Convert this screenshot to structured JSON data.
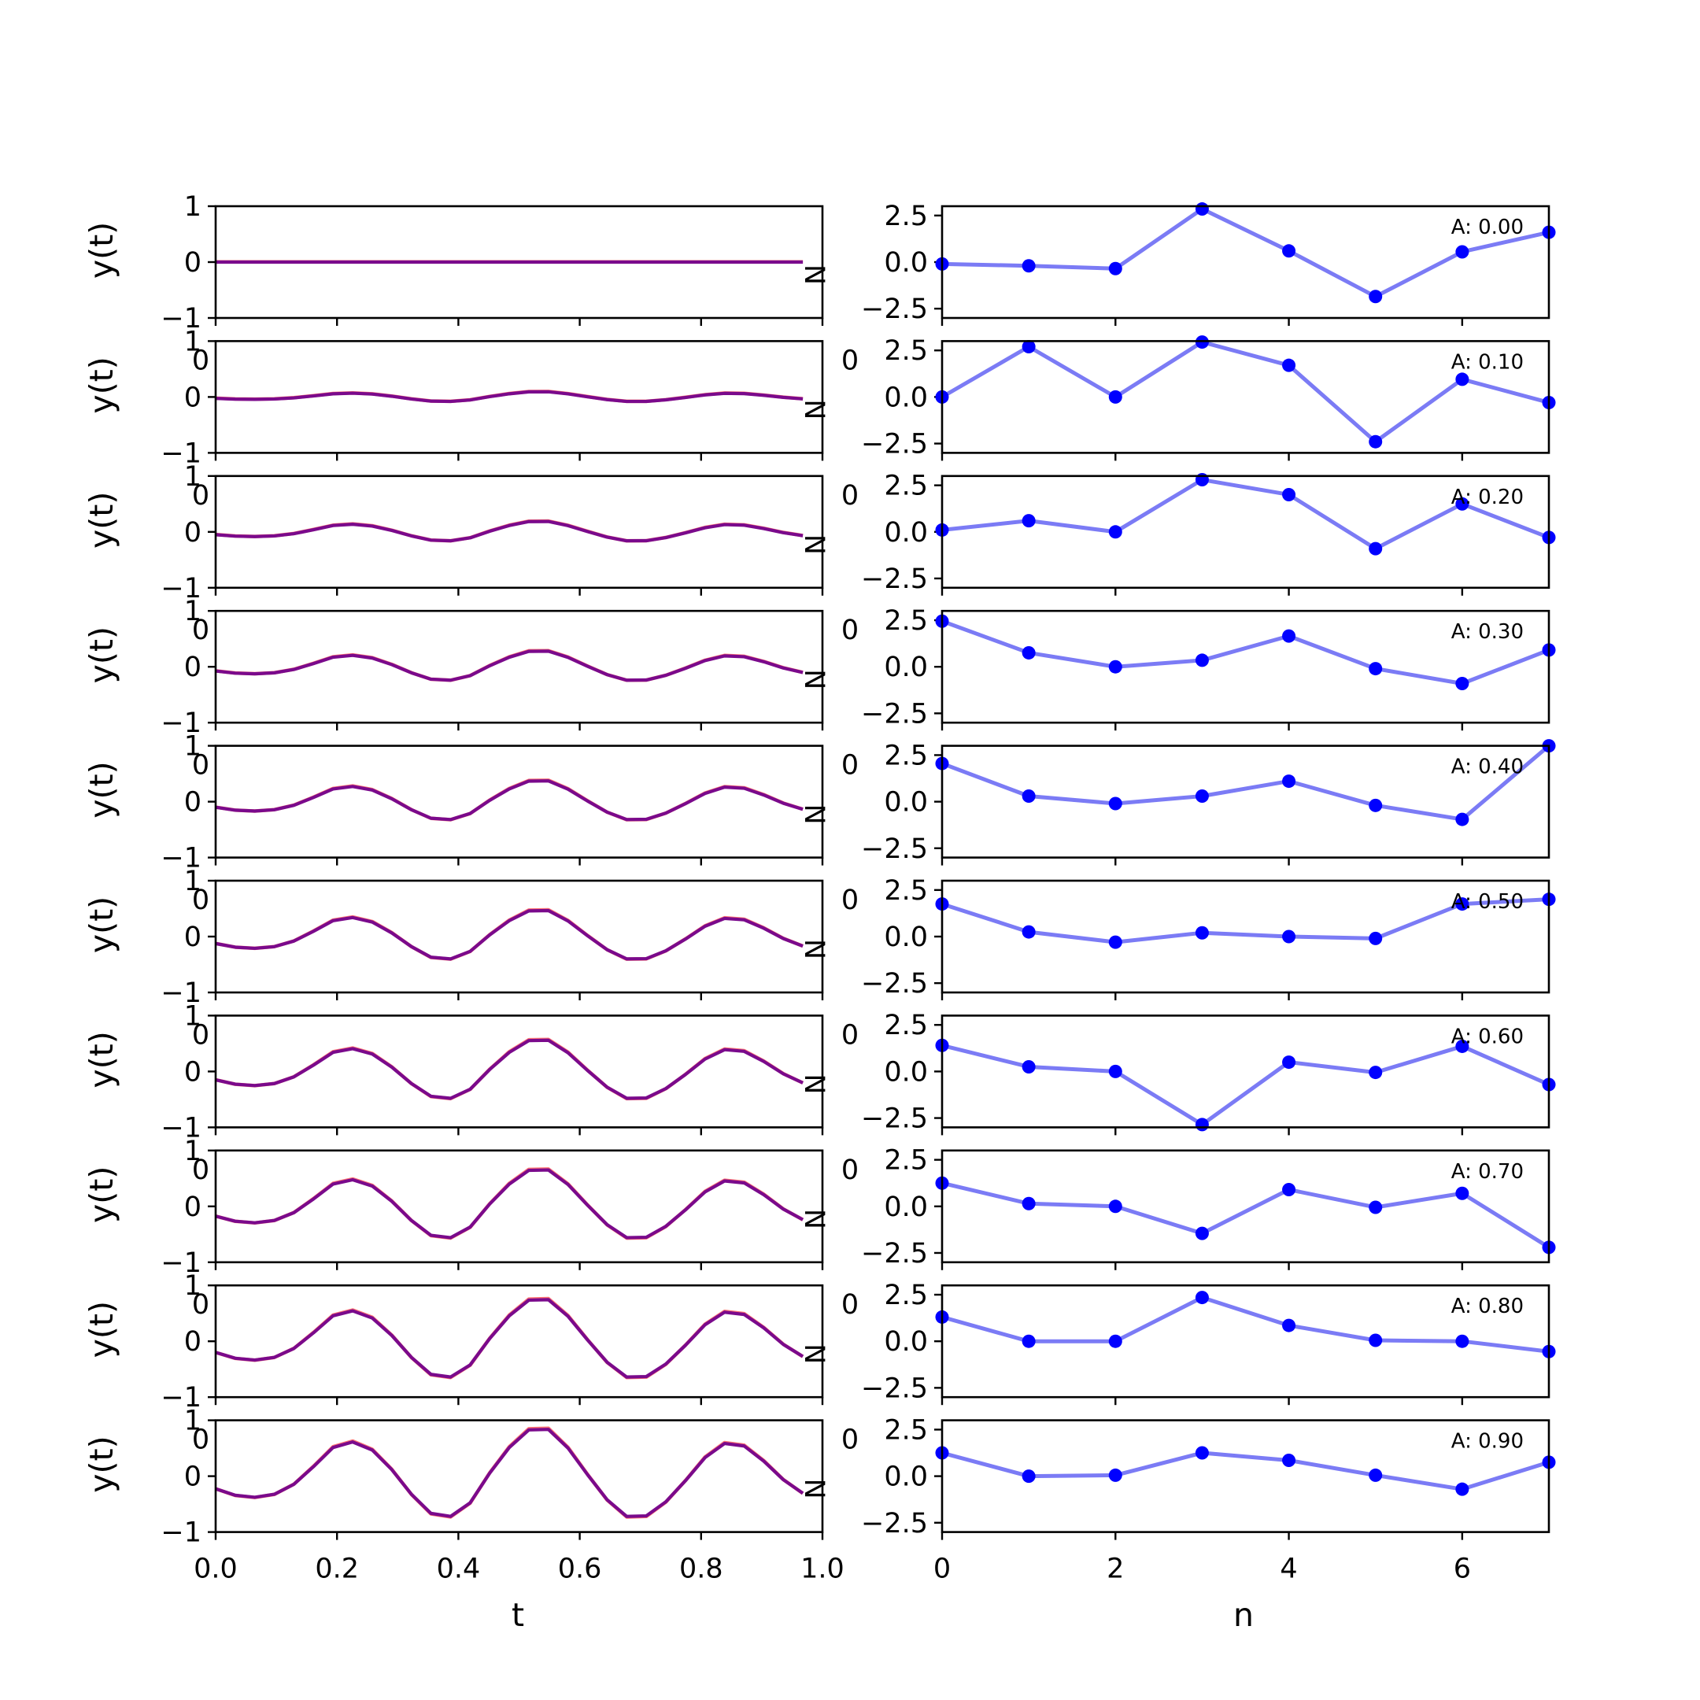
{
  "chart_data": [
    {
      "type": "line",
      "panel": "time-domain",
      "xlabel": "t",
      "ylabel": "y(t)",
      "xlim": [
        0.0,
        1.0
      ],
      "ylim": [
        -1,
        1
      ],
      "xticks": [
        0.0,
        0.2,
        0.4,
        0.6,
        0.8,
        1.0
      ],
      "xtick_labels": [
        "0.0",
        "0.2",
        "0.4",
        "0.6",
        "0.8",
        "1.0"
      ],
      "yticks": [
        -1,
        0,
        1
      ],
      "ytick_labels": [
        "−1",
        "0",
        "1"
      ],
      "stray_tick_text": "0",
      "corner_text": "N",
      "colors": {
        "signal": "#0000ff",
        "overlay": "#ff0000",
        "blend": "#7a0a8c"
      },
      "x": [
        0.0,
        0.0323,
        0.0645,
        0.0968,
        0.129,
        0.1613,
        0.1935,
        0.2258,
        0.2581,
        0.2903,
        0.3226,
        0.3548,
        0.3871,
        0.4194,
        0.4516,
        0.4839,
        0.5161,
        0.5484,
        0.5806,
        0.6129,
        0.6452,
        0.6774,
        0.7097,
        0.7419,
        0.7742,
        0.8065,
        0.8387,
        0.871,
        0.9032,
        0.9355,
        0.9677
      ],
      "base_wave": [
        -0.25,
        -0.38,
        -0.42,
        -0.36,
        -0.16,
        0.19,
        0.57,
        0.68,
        0.52,
        0.13,
        -0.36,
        -0.74,
        -0.8,
        -0.53,
        0.06,
        0.57,
        0.92,
        0.93,
        0.56,
        0.03,
        -0.47,
        -0.8,
        -0.79,
        -0.51,
        -0.09,
        0.37,
        0.65,
        0.6,
        0.3,
        -0.07,
        -0.34
      ],
      "series_amplitudes": [
        0.0,
        0.1,
        0.2,
        0.3,
        0.4,
        0.5,
        0.6,
        0.7,
        0.8,
        0.9
      ]
    },
    {
      "type": "line",
      "panel": "samples",
      "xlabel": "n",
      "ylabel": "",
      "xlim": [
        0,
        7
      ],
      "ylim": [
        -3,
        3
      ],
      "xticks": [
        0,
        2,
        4,
        6
      ],
      "xtick_labels": [
        "0",
        "2",
        "4",
        "6"
      ],
      "yticks": [
        -2.5,
        0.0,
        2.5
      ],
      "ytick_labels": [
        "−2.5",
        "0.0",
        "2.5"
      ],
      "colors": {
        "line": "#7b7bf5",
        "marker": "#0000ff"
      },
      "series": [
        {
          "annotation": "A: 0.00",
          "x": [
            0,
            1,
            2,
            3,
            4,
            5,
            6,
            7
          ],
          "values": [
            -0.1,
            -0.2,
            -0.35,
            2.85,
            0.6,
            -1.85,
            0.55,
            1.6
          ]
        },
        {
          "annotation": "A: 0.10",
          "x": [
            0,
            1,
            2,
            3,
            4,
            5,
            6,
            7
          ],
          "values": [
            0.0,
            2.7,
            0.0,
            2.95,
            1.7,
            -2.4,
            0.95,
            -0.3
          ]
        },
        {
          "annotation": "A: 0.20",
          "x": [
            0,
            1,
            2,
            3,
            4,
            5,
            6,
            7
          ],
          "values": [
            0.1,
            0.6,
            0.0,
            2.8,
            2.0,
            -0.9,
            1.5,
            -0.3
          ]
        },
        {
          "annotation": "A: 0.30",
          "x": [
            0,
            1,
            2,
            3,
            4,
            5,
            6,
            7
          ],
          "values": [
            2.45,
            0.75,
            0.0,
            0.35,
            1.65,
            -0.1,
            -0.9,
            0.9
          ]
        },
        {
          "annotation": "A: 0.40",
          "x": [
            0,
            1,
            2,
            3,
            4,
            5,
            6,
            7
          ],
          "values": [
            2.05,
            0.3,
            -0.1,
            0.3,
            1.1,
            -0.2,
            -0.95,
            3.0
          ]
        },
        {
          "annotation": "A: 0.50",
          "x": [
            0,
            1,
            2,
            3,
            4,
            5,
            6,
            7
          ],
          "values": [
            1.75,
            0.25,
            -0.3,
            0.2,
            0.0,
            -0.1,
            1.75,
            2.0
          ]
        },
        {
          "annotation": "A: 0.60",
          "x": [
            0,
            1,
            2,
            3,
            4,
            5,
            6,
            7
          ],
          "values": [
            1.4,
            0.25,
            0.0,
            -2.85,
            0.5,
            -0.05,
            1.35,
            -0.7
          ]
        },
        {
          "annotation": "A: 0.70",
          "x": [
            0,
            1,
            2,
            3,
            4,
            5,
            6,
            7
          ],
          "values": [
            1.25,
            0.15,
            0.0,
            -1.45,
            0.9,
            -0.05,
            0.7,
            -2.2
          ]
        },
        {
          "annotation": "A: 0.80",
          "x": [
            0,
            1,
            2,
            3,
            4,
            5,
            6,
            7
          ],
          "values": [
            1.3,
            0.0,
            0.0,
            2.35,
            0.85,
            0.05,
            0.0,
            -0.55
          ]
        },
        {
          "annotation": "A: 0.90",
          "x": [
            0,
            1,
            2,
            3,
            4,
            5,
            6,
            7
          ],
          "values": [
            1.25,
            0.0,
            0.05,
            1.25,
            0.85,
            0.05,
            -0.7,
            0.75
          ]
        }
      ]
    }
  ]
}
